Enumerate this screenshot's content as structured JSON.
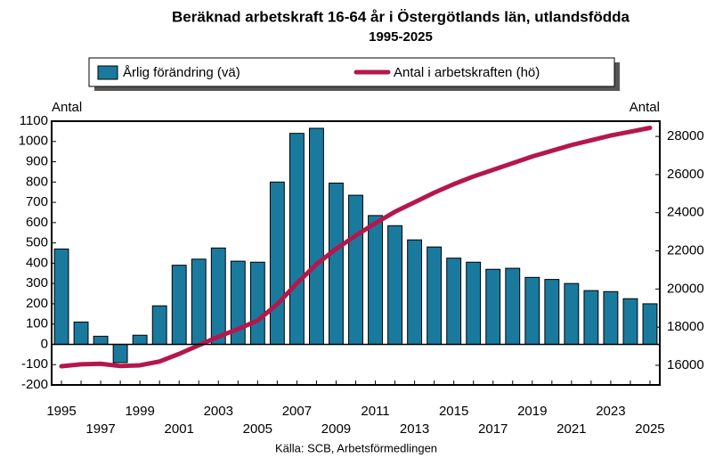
{
  "chart_data": {
    "type": "bar_line",
    "title": "Beräknad arbetskraft 16-64 år i Östergötlands län, utlandsfödda",
    "subtitle": "1995-2025",
    "y_label": "Antal",
    "y2_label": "Antal",
    "source": "Källa: SCB, Arbetsförmedlingen",
    "categories": [
      "1995",
      null,
      "1997",
      null,
      "1999",
      null,
      "2001",
      null,
      "2003",
      null,
      "2005",
      null,
      "2007",
      null,
      "2009",
      null,
      "2011",
      null,
      "2013",
      null,
      "2015",
      null,
      "2017",
      null,
      "2019",
      null,
      "2021",
      null,
      "2023",
      null,
      "2025"
    ],
    "series": [
      {
        "name": "Årlig förändring (vä)",
        "type": "bar",
        "color": "#1a7a9e",
        "axis": "y",
        "values": [
          470,
          110,
          40,
          -90,
          45,
          190,
          390,
          420,
          475,
          410,
          405,
          800,
          1040,
          1065,
          795,
          735,
          635,
          585,
          515,
          480,
          425,
          405,
          370,
          375,
          330,
          320,
          300,
          265,
          260,
          225,
          200
        ]
      },
      {
        "name": "Antal i arbetskraften (hö)",
        "type": "line",
        "color": "#b5174b",
        "axis": "y2",
        "values": [
          15950,
          16050,
          16080,
          15960,
          16000,
          16200,
          16600,
          17050,
          17500,
          17900,
          18350,
          19200,
          20300,
          21300,
          22100,
          22800,
          23450,
          24050,
          24550,
          25050,
          25500,
          25900,
          26250,
          26600,
          26950,
          27250,
          27550,
          27800,
          28050,
          28250,
          28450
        ]
      }
    ],
    "ylim": [
      -200,
      1100
    ],
    "yticks": [
      -200,
      -100,
      0,
      100,
      200,
      300,
      400,
      500,
      600,
      700,
      800,
      900,
      1000,
      1100
    ],
    "y2lim": [
      14970,
      28800
    ],
    "y2ticks": [
      16000,
      18000,
      20000,
      22000,
      24000,
      26000,
      28000
    ]
  }
}
